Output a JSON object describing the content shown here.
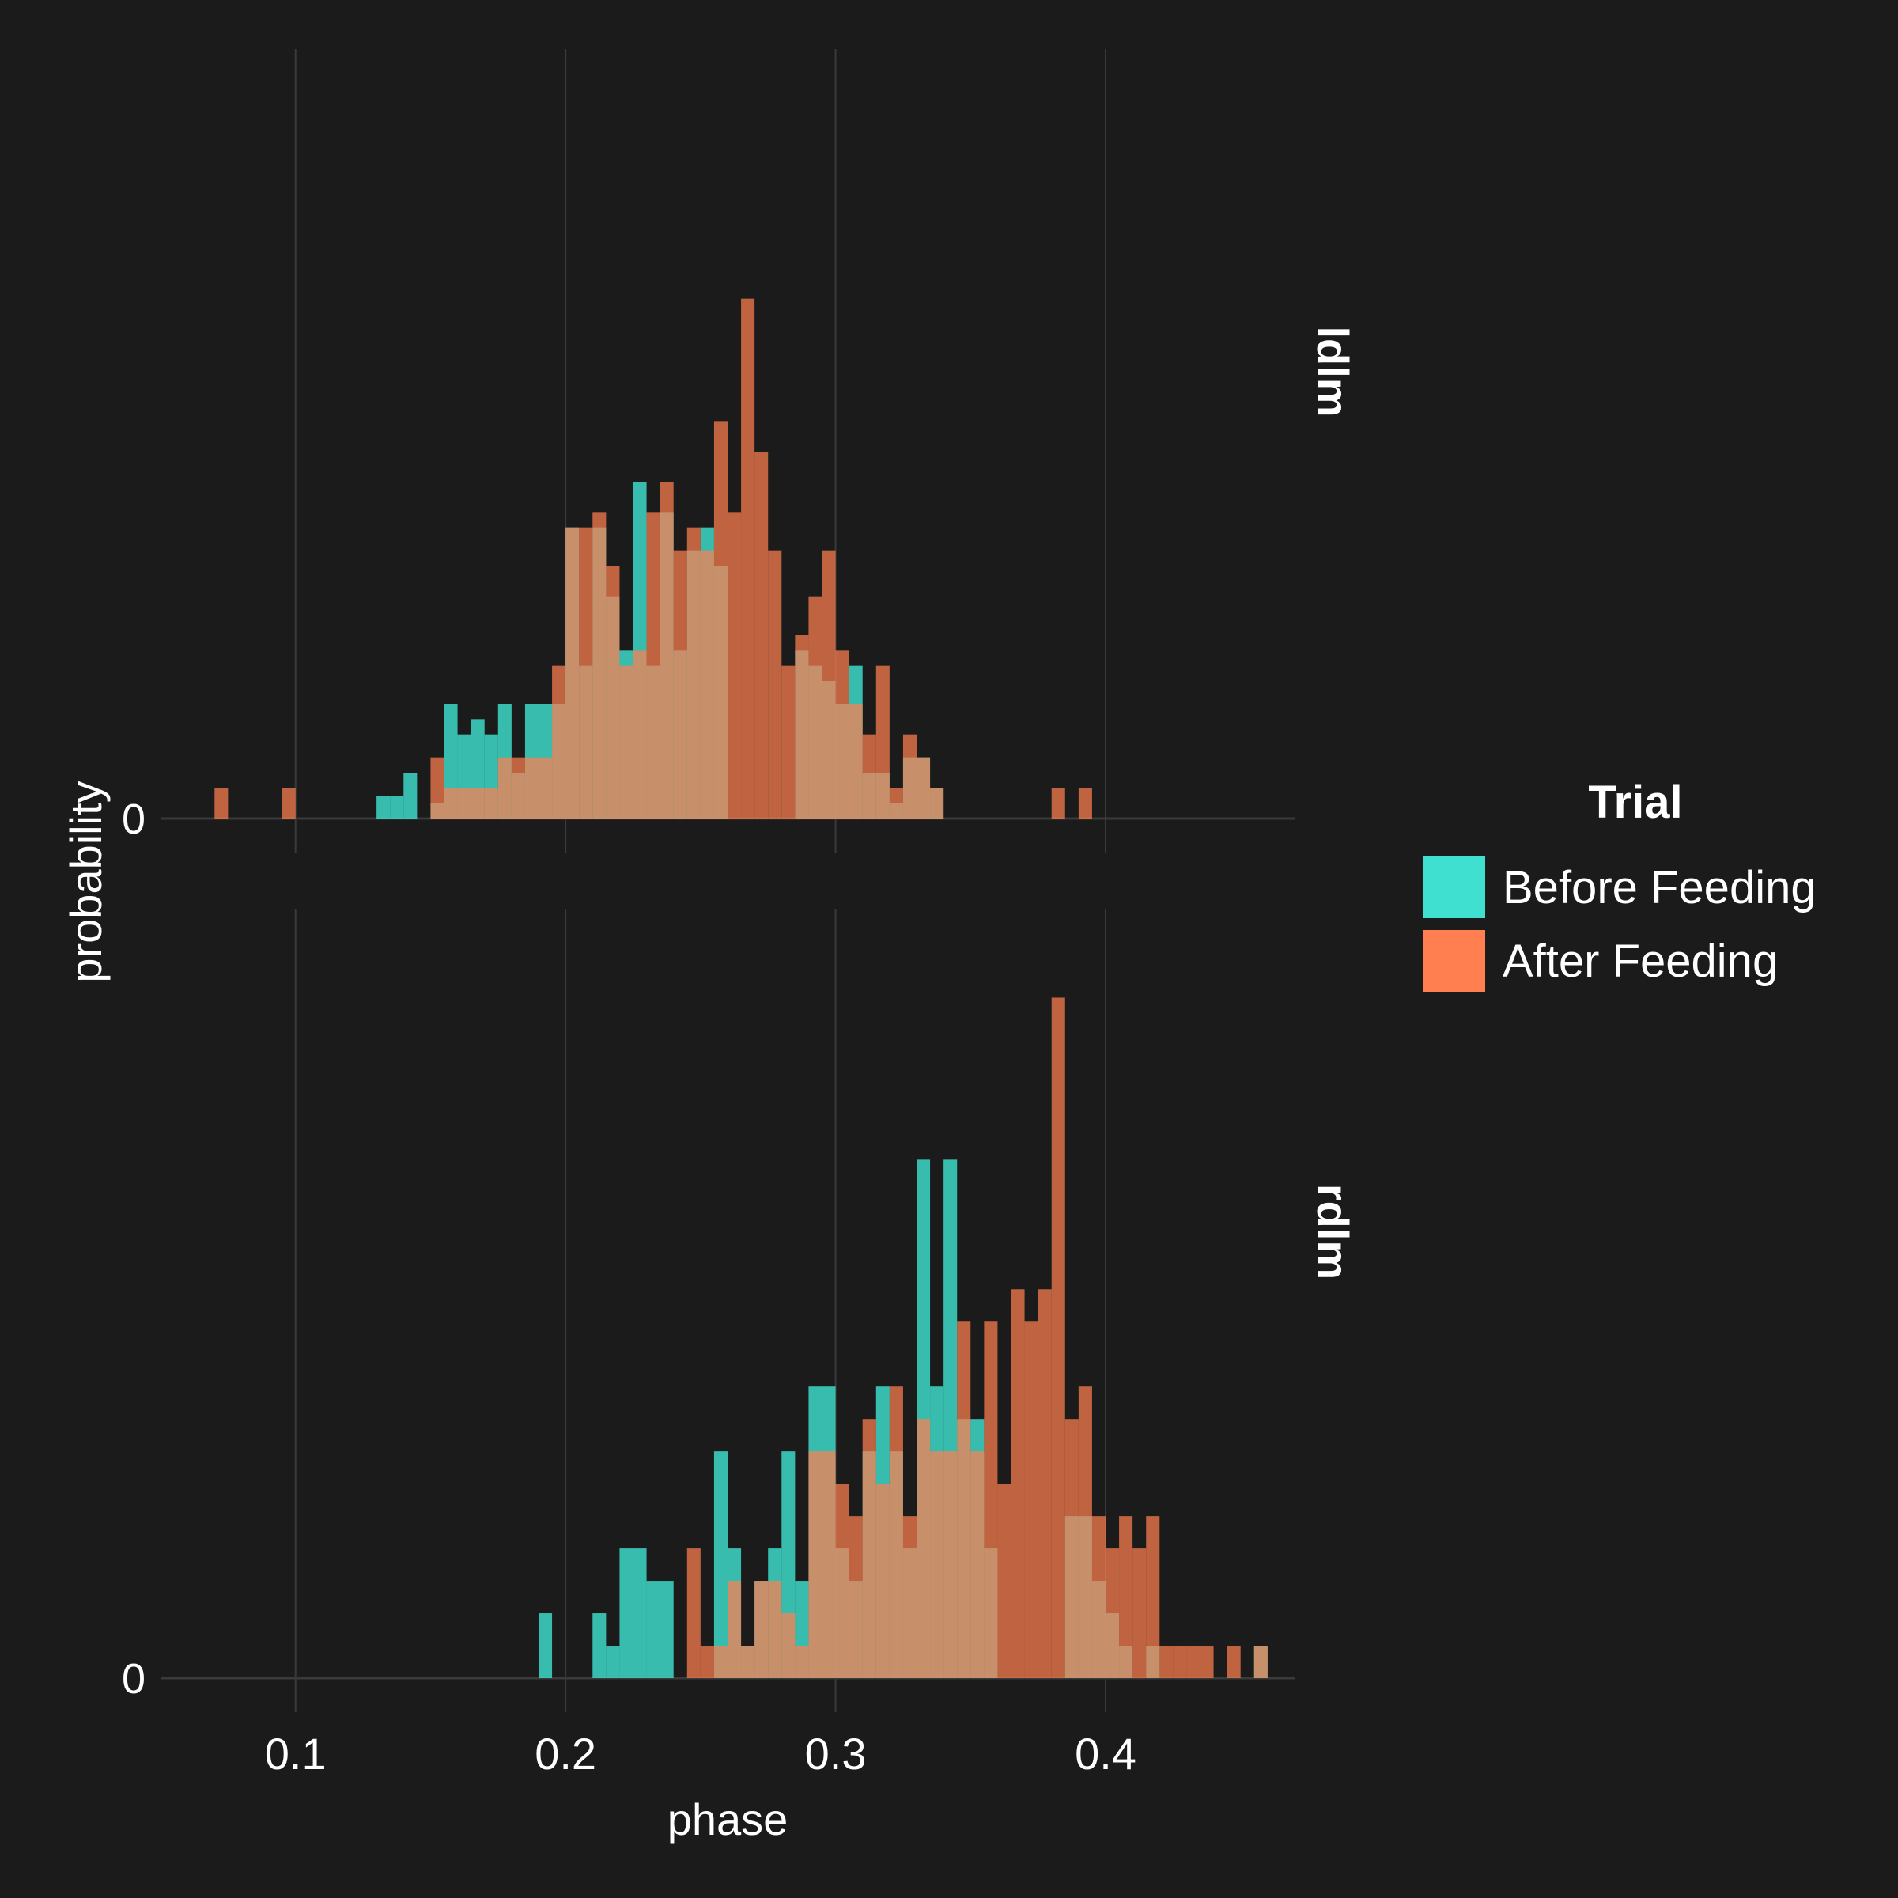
{
  "chart_data": {
    "type": "histogram",
    "xlabel": "phase",
    "ylabel": "probability",
    "xlim": [
      0.05,
      0.47
    ],
    "x_ticks": [
      "0.1",
      "0.2",
      "0.3",
      "0.4"
    ],
    "x_tick_values": [
      0.1,
      0.2,
      0.3,
      0.4
    ],
    "y_tick_label": "0",
    "bin_start": 0.07,
    "bin_width": 0.005,
    "grid": "vertical",
    "legend": {
      "title": "Trial",
      "placement": "right",
      "entries": [
        {
          "label": "Before Feeding",
          "color": "#40e0d0"
        },
        {
          "label": "After Feeding",
          "color": "#ff7f50"
        }
      ]
    },
    "panels": [
      {
        "label": "ldlm",
        "ylim": [
          0,
          0.075
        ],
        "series": [
          {
            "name": "Before Feeding",
            "color": "#40e0d0",
            "values": [
              0,
              0,
              0,
              0,
              0,
              0,
              0,
              0,
              0,
              0,
              0,
              0,
              0.003,
              0.003,
              0.006,
              0,
              0.002,
              0.015,
              0.011,
              0.013,
              0.011,
              0.015,
              0.006,
              0.015,
              0.015,
              0.015,
              0.038,
              0.02,
              0.038,
              0.029,
              0.022,
              0.044,
              0.02,
              0.04,
              0.022,
              0.035,
              0.038,
              0.033,
              0,
              0,
              0,
              0,
              0,
              0.022,
              0.02,
              0.018,
              0.015,
              0.02,
              0.006,
              0.006,
              0.002,
              0.008,
              0.008,
              0.004,
              0,
              0,
              0,
              0,
              0,
              0,
              0,
              0,
              0,
              0,
              0,
              0,
              0,
              0,
              0,
              0
            ]
          },
          {
            "name": "After Feeding",
            "color": "#ff7f50",
            "values": [
              0.004,
              0,
              0,
              0,
              0,
              0.004,
              0,
              0,
              0,
              0,
              0,
              0,
              0,
              0,
              0,
              0,
              0.008,
              0.004,
              0.004,
              0.004,
              0.004,
              0.008,
              0.008,
              0.008,
              0.008,
              0.02,
              0.038,
              0.038,
              0.04,
              0.033,
              0.02,
              0.022,
              0.04,
              0.044,
              0.035,
              0.038,
              0.035,
              0.052,
              0.04,
              0.068,
              0.048,
              0.035,
              0.02,
              0.024,
              0.029,
              0.035,
              0.022,
              0.015,
              0.011,
              0.02,
              0.004,
              0.011,
              0.008,
              0.004,
              0,
              0,
              0,
              0,
              0,
              0,
              0,
              0,
              0.004,
              0,
              0.004,
              0,
              0,
              0,
              0,
              0
            ]
          }
        ]
      },
      {
        "label": "rdlm",
        "ylim": [
          0,
          0.09
        ],
        "series": [
          {
            "name": "Before Feeding",
            "color": "#40e0d0",
            "values": [
              0,
              0,
              0,
              0,
              0,
              0,
              0,
              0,
              0,
              0,
              0,
              0,
              0,
              0,
              0,
              0,
              0,
              0,
              0,
              0,
              0,
              0,
              0,
              0,
              0.008,
              0,
              0,
              0,
              0.008,
              0.004,
              0.016,
              0.016,
              0.012,
              0.012,
              0,
              0,
              0,
              0.028,
              0.016,
              0.004,
              0.012,
              0.016,
              0.028,
              0.012,
              0.036,
              0.036,
              0.016,
              0.012,
              0.028,
              0.036,
              0.028,
              0.016,
              0.064,
              0.036,
              0.064,
              0.032,
              0.032,
              0.016,
              0,
              0,
              0,
              0,
              0,
              0.02,
              0.02,
              0.012,
              0.008,
              0.004,
              0,
              0.004,
              0,
              0,
              0,
              0,
              0,
              0,
              0,
              0.004
            ]
          },
          {
            "name": "After Feeding",
            "color": "#ff7f50",
            "values": [
              0,
              0,
              0,
              0,
              0,
              0,
              0,
              0,
              0,
              0,
              0,
              0,
              0,
              0,
              0,
              0,
              0,
              0,
              0,
              0,
              0,
              0,
              0,
              0,
              0,
              0,
              0,
              0,
              0,
              0,
              0,
              0,
              0,
              0,
              0,
              0.016,
              0.004,
              0.004,
              0.012,
              0.004,
              0.012,
              0.012,
              0.008,
              0.004,
              0.028,
              0.028,
              0.024,
              0.02,
              0.032,
              0.024,
              0.036,
              0.02,
              0.032,
              0.028,
              0.028,
              0.044,
              0.028,
              0.044,
              0.024,
              0.048,
              0.044,
              0.048,
              0.084,
              0.032,
              0.036,
              0.02,
              0.016,
              0.02,
              0.016,
              0.02,
              0.004,
              0.004,
              0.004,
              0.004,
              0,
              0.004,
              0,
              0.004
            ]
          }
        ]
      }
    ]
  }
}
